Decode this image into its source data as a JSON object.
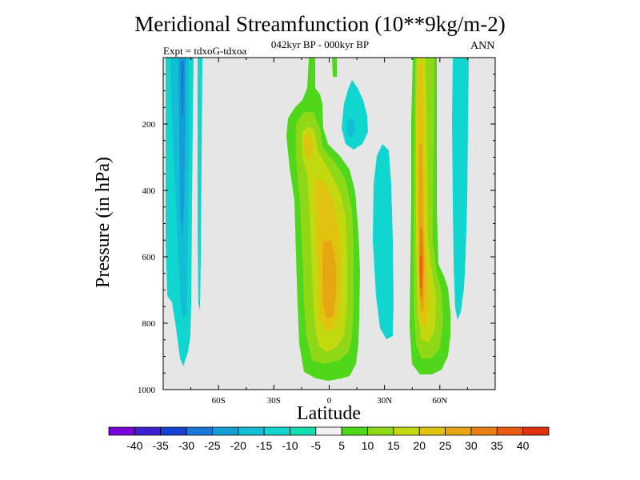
{
  "header": {
    "title": "Meridional Streamfunction (10**9kg/m-2)",
    "period": "042kyr BP - 000kyr BP",
    "experiment": "Expt = tdxoG-tdxoa",
    "season": "ANN"
  },
  "chart_data": {
    "type": "contour",
    "title": "Meridional Streamfunction (10**9kg/m-2)",
    "xlabel": "Latitude",
    "ylabel": "Pressure (in hPa)",
    "xlim": [
      -90,
      90
    ],
    "ylim": [
      1000,
      0
    ],
    "x_ticks": [
      {
        "value": -60,
        "label": "60S"
      },
      {
        "value": -30,
        "label": "30S"
      },
      {
        "value": 0,
        "label": "0"
      },
      {
        "value": 30,
        "label": "30N"
      },
      {
        "value": 60,
        "label": "60N"
      }
    ],
    "y_ticks": [
      {
        "value": 200,
        "label": "200"
      },
      {
        "value": 400,
        "label": "400"
      },
      {
        "value": 600,
        "label": "600"
      },
      {
        "value": 800,
        "label": "800"
      },
      {
        "value": 1000,
        "label": "1000"
      }
    ],
    "background_color": "#e6e6e6",
    "colorbar": {
      "labels": [
        "-40",
        "-35",
        "-30",
        "-25",
        "-20",
        "-15",
        "-10",
        "-5",
        "5",
        "10",
        "15",
        "20",
        "25",
        "30",
        "35",
        "40"
      ],
      "colors": [
        "#7a00d9",
        "#3d1fd2",
        "#1640d6",
        "#1a78d8",
        "#159ed6",
        "#12bdd6",
        "#10d6cf",
        "#12dcb0",
        "#f2f2f2",
        "#4fd81b",
        "#8ed818",
        "#c4d80f",
        "#e0c30f",
        "#e6a512",
        "#e87f12",
        "#e85a10",
        "#e03010"
      ]
    },
    "features": [
      {
        "name": "negative-cell-60S",
        "lat_range": [
          -87,
          -72
        ],
        "pressure_range": [
          0,
          935
        ],
        "min_value": -25,
        "note": "vertical band extending from top to surface"
      },
      {
        "name": "negative-cell-70S-narrow",
        "lat_range": [
          -71,
          -69
        ],
        "pressure_range": [
          0,
          770
        ],
        "min_value": -10
      },
      {
        "name": "positive-cell-tropics",
        "lat_range": [
          -22,
          14
        ],
        "pressure_range": [
          0,
          995
        ],
        "max_value": 30,
        "note": "main tropical cell, max near 0-5S at 700 hPa"
      },
      {
        "name": "negative-cell-upper-10N",
        "lat_range": [
          8,
          22
        ],
        "pressure_range": [
          50,
          215
        ],
        "min_value": -15
      },
      {
        "name": "negative-cell-30N",
        "lat_range": [
          25,
          38
        ],
        "pressure_range": [
          250,
          890
        ],
        "min_value": -10
      },
      {
        "name": "positive-cell-55N",
        "lat_range": [
          47,
          63
        ],
        "pressure_range": [
          0,
          990
        ],
        "max_value": 35,
        "note": "narrow high-latitude cell, max near 52N at 700 hPa"
      },
      {
        "name": "negative-cell-70N",
        "lat_range": [
          67,
          76
        ],
        "pressure_range": [
          0,
          790
        ],
        "min_value": -10
      }
    ]
  }
}
